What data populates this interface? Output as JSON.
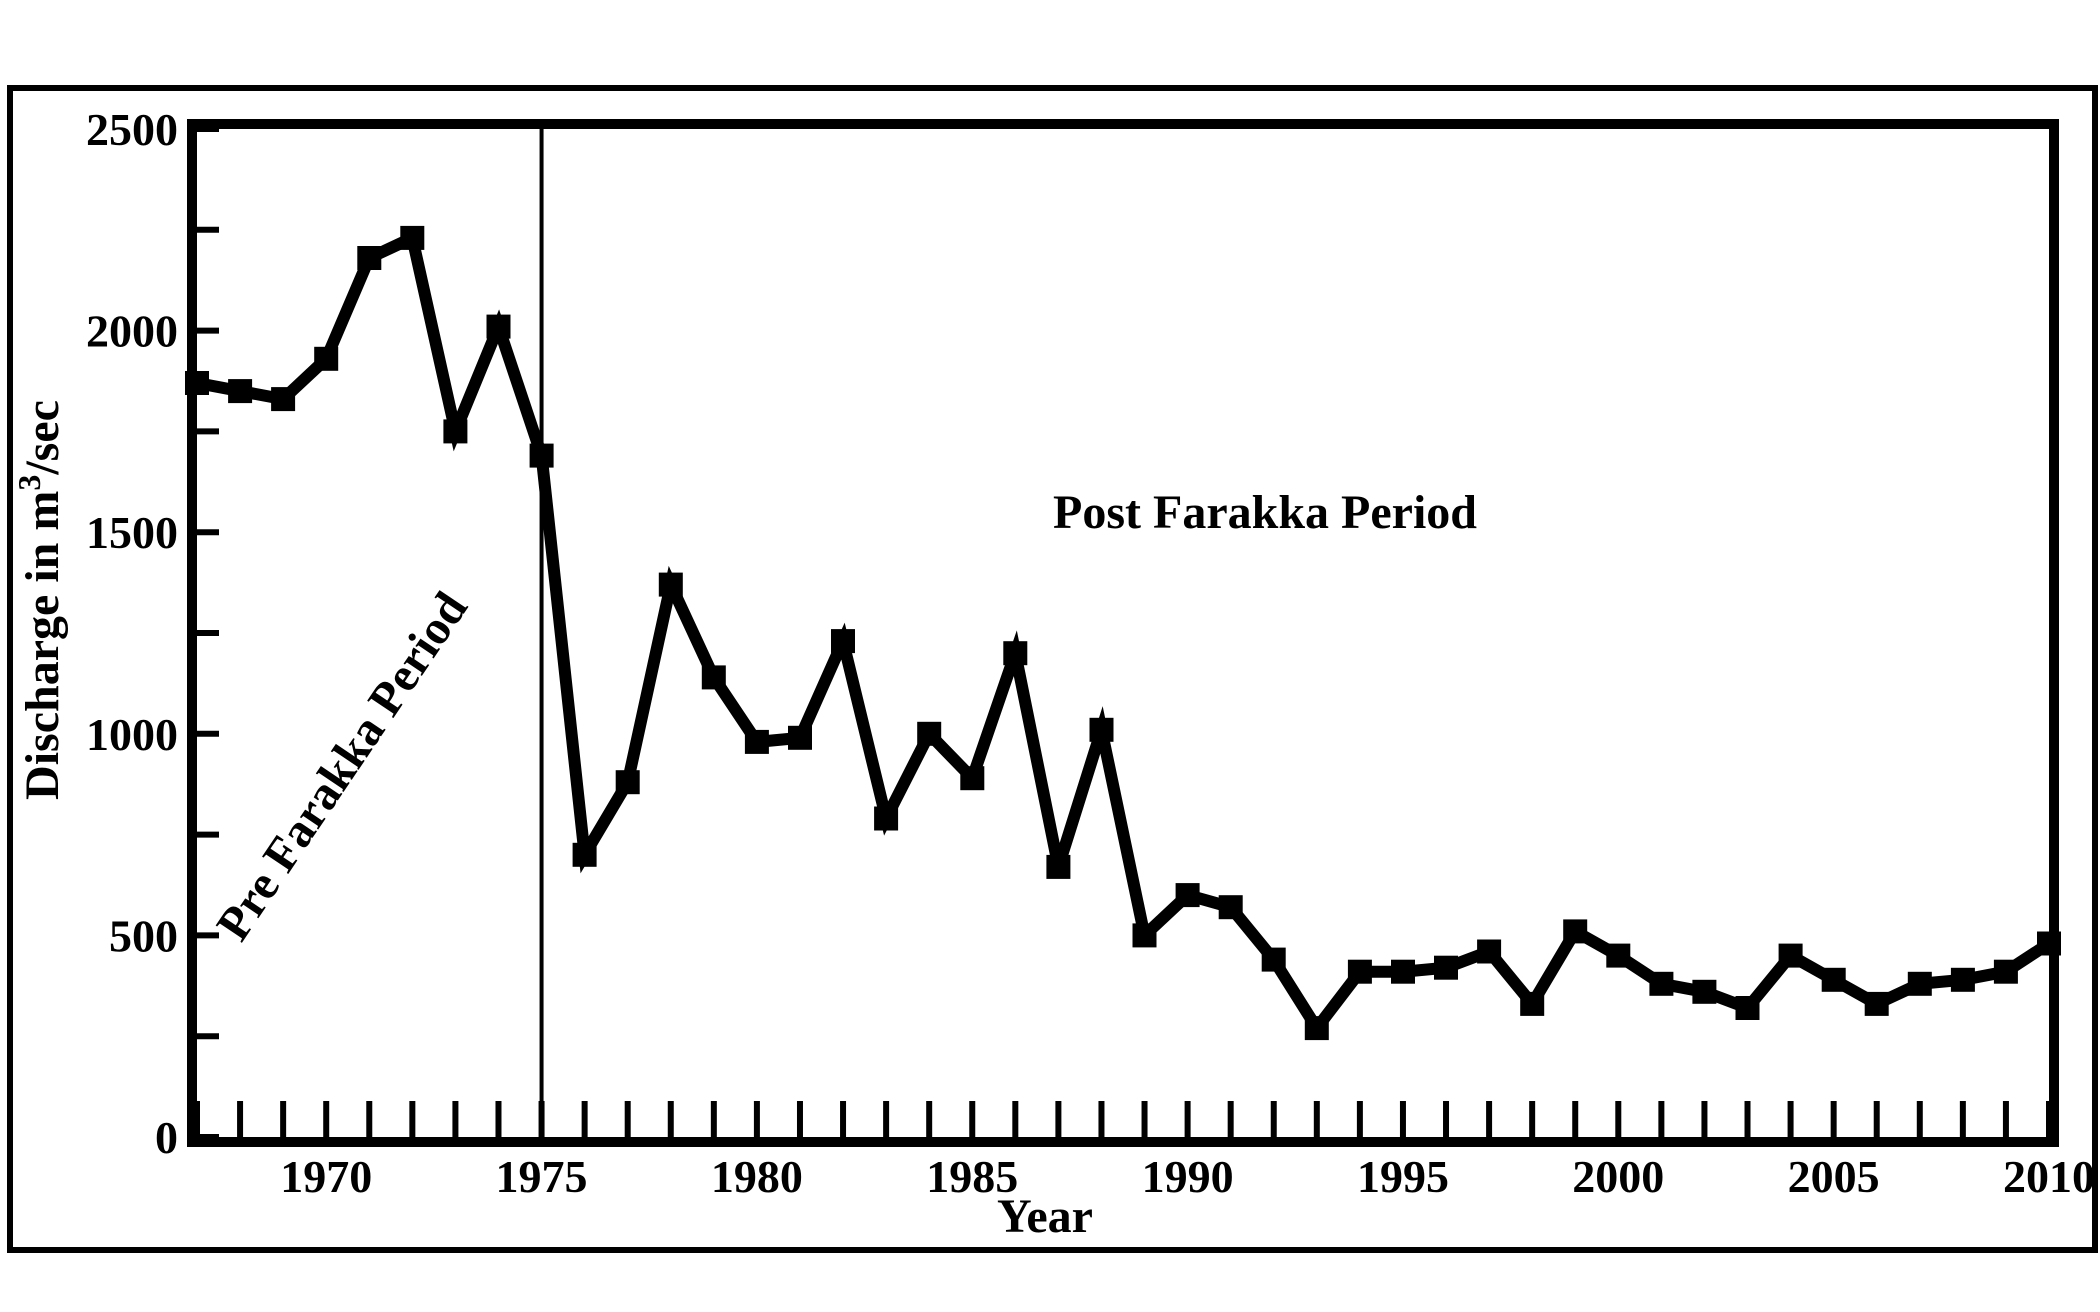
{
  "chart_data": {
    "type": "line",
    "title": "",
    "xlabel": "Year",
    "ylabel": "Discharge in m³/sec",
    "ylabel_parts": {
      "pre": "Discharge in m",
      "sup": "3",
      "post": "/sec"
    },
    "xlim": [
      1967,
      2010
    ],
    "ylim": [
      0,
      2500
    ],
    "grid": false,
    "legend": "none",
    "y_ticks": [
      0,
      500,
      1000,
      1500,
      2000,
      2500
    ],
    "y_minor_ticks": [
      250,
      750,
      1250,
      1750,
      2250
    ],
    "x_ticks": [
      1970,
      1975,
      1980,
      1985,
      1990,
      1995,
      2000,
      2005,
      2010
    ],
    "x_tick_labels": [
      "1970",
      "1975",
      "1980",
      "1985",
      "1990",
      "1995",
      "2000",
      "2005",
      "2010"
    ],
    "divider_year": 1975,
    "annotations": {
      "pre": "Pre Farakka Period",
      "post": "Post Farakka Period"
    },
    "line_color": "#000000",
    "series": [
      {
        "x": [
          1967,
          1968,
          1969,
          1970,
          1971,
          1972,
          1973,
          1974,
          1975,
          1976,
          1977,
          1978,
          1979,
          1980,
          1981,
          1982,
          1983,
          1984,
          1985,
          1986,
          1987,
          1988,
          1989,
          1990,
          1991,
          1992,
          1993,
          1994,
          1995,
          1996,
          1997,
          1998,
          1999,
          2000,
          2001,
          2002,
          2003,
          2004,
          2005,
          2006,
          2007,
          2008,
          2009,
          2010
        ],
        "values": [
          1870,
          1850,
          1830,
          1930,
          2180,
          2230,
          1750,
          2010,
          1690,
          700,
          880,
          1370,
          1140,
          980,
          990,
          1230,
          790,
          1000,
          890,
          1200,
          670,
          1010,
          500,
          600,
          570,
          440,
          270,
          410,
          410,
          420,
          460,
          330,
          510,
          450,
          380,
          360,
          320,
          450,
          390,
          330,
          380,
          390,
          410,
          480
        ]
      }
    ]
  }
}
